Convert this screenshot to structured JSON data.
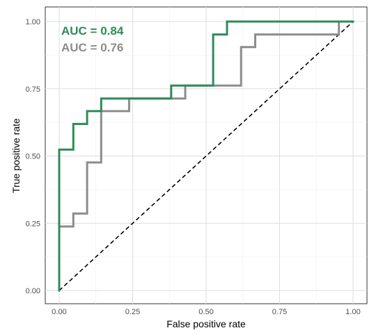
{
  "chart_data": {
    "type": "line",
    "title": "",
    "xlabel": "False positive rate",
    "ylabel": "True positive rate",
    "xlim": [
      0,
      1
    ],
    "ylim": [
      0,
      1
    ],
    "x_ticks": [
      "0.00",
      "0.25",
      "0.50",
      "0.75",
      "1.00"
    ],
    "y_ticks": [
      "0.00",
      "0.25",
      "0.50",
      "0.75",
      "1.00"
    ],
    "grid": true,
    "series": [
      {
        "color": "#2e8b57",
        "annotation": "AUC =  0.84",
        "step": true,
        "x": [
          0.0,
          0.0,
          0.048,
          0.048,
          0.095,
          0.095,
          0.143,
          0.143,
          0.381,
          0.381,
          0.524,
          0.524,
          0.571,
          0.571,
          1.0
        ],
        "y": [
          0.0,
          0.524,
          0.524,
          0.619,
          0.619,
          0.667,
          0.667,
          0.714,
          0.714,
          0.762,
          0.762,
          0.952,
          0.952,
          1.0,
          1.0
        ]
      },
      {
        "color": "#8c8c8c",
        "annotation": "AUC =  0.76",
        "step": true,
        "x": [
          0.0,
          0.0,
          0.048,
          0.048,
          0.095,
          0.095,
          0.143,
          0.143,
          0.238,
          0.238,
          0.429,
          0.429,
          0.619,
          0.619,
          0.667,
          0.667,
          0.952,
          0.952,
          1.0
        ],
        "y": [
          0.0,
          0.238,
          0.238,
          0.286,
          0.286,
          0.476,
          0.476,
          0.667,
          0.667,
          0.714,
          0.714,
          0.762,
          0.762,
          0.905,
          0.905,
          0.952,
          0.952,
          1.0,
          1.0
        ]
      }
    ],
    "reference_line": {
      "x": [
        0,
        1
      ],
      "y": [
        0,
        1
      ],
      "style": "dashed",
      "color": "#000000"
    }
  }
}
